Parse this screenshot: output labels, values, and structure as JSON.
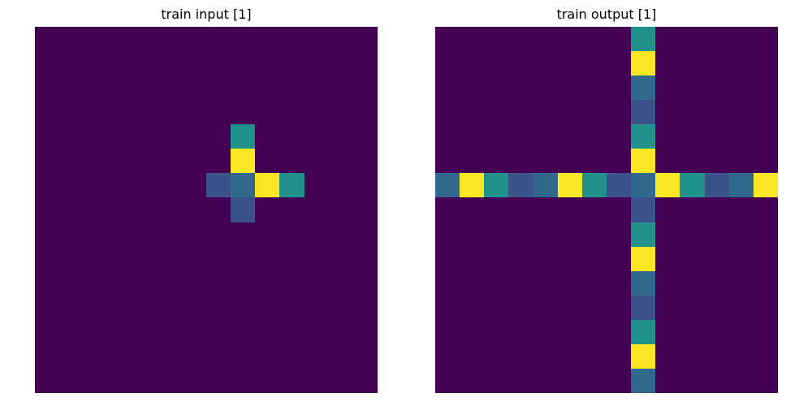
{
  "palette": {
    "0": "#440154",
    "1": "#3b528b",
    "2": "#21918c",
    "3": "#fde725",
    "4": "#31688e"
  },
  "panels": [
    {
      "title": "train input [1]",
      "rows": 15,
      "cols": 14,
      "grid": [
        [
          0,
          0,
          0,
          0,
          0,
          0,
          0,
          0,
          0,
          0,
          0,
          0,
          0,
          0
        ],
        [
          0,
          0,
          0,
          0,
          0,
          0,
          0,
          0,
          0,
          0,
          0,
          0,
          0,
          0
        ],
        [
          0,
          0,
          0,
          0,
          0,
          0,
          0,
          0,
          0,
          0,
          0,
          0,
          0,
          0
        ],
        [
          0,
          0,
          0,
          0,
          0,
          0,
          0,
          0,
          0,
          0,
          0,
          0,
          0,
          0
        ],
        [
          0,
          0,
          0,
          0,
          0,
          0,
          0,
          0,
          2,
          0,
          0,
          0,
          0,
          0
        ],
        [
          0,
          0,
          0,
          0,
          0,
          0,
          0,
          0,
          3,
          0,
          0,
          0,
          0,
          0
        ],
        [
          0,
          0,
          0,
          0,
          0,
          0,
          0,
          1,
          4,
          3,
          2,
          0,
          0,
          0
        ],
        [
          0,
          0,
          0,
          0,
          0,
          0,
          0,
          0,
          1,
          0,
          0,
          0,
          0,
          0
        ],
        [
          0,
          0,
          0,
          0,
          0,
          0,
          0,
          0,
          0,
          0,
          0,
          0,
          0,
          0
        ],
        [
          0,
          0,
          0,
          0,
          0,
          0,
          0,
          0,
          0,
          0,
          0,
          0,
          0,
          0
        ],
        [
          0,
          0,
          0,
          0,
          0,
          0,
          0,
          0,
          0,
          0,
          0,
          0,
          0,
          0
        ],
        [
          0,
          0,
          0,
          0,
          0,
          0,
          0,
          0,
          0,
          0,
          0,
          0,
          0,
          0
        ],
        [
          0,
          0,
          0,
          0,
          0,
          0,
          0,
          0,
          0,
          0,
          0,
          0,
          0,
          0
        ],
        [
          0,
          0,
          0,
          0,
          0,
          0,
          0,
          0,
          0,
          0,
          0,
          0,
          0,
          0
        ],
        [
          0,
          0,
          0,
          0,
          0,
          0,
          0,
          0,
          0,
          0,
          0,
          0,
          0,
          0
        ]
      ]
    },
    {
      "title": "train output [1]",
      "rows": 15,
      "cols": 14,
      "grid": [
        [
          0,
          0,
          0,
          0,
          0,
          0,
          0,
          0,
          2,
          0,
          0,
          0,
          0,
          0
        ],
        [
          0,
          0,
          0,
          0,
          0,
          0,
          0,
          0,
          3,
          0,
          0,
          0,
          0,
          0
        ],
        [
          0,
          0,
          0,
          0,
          0,
          0,
          0,
          0,
          4,
          0,
          0,
          0,
          0,
          0
        ],
        [
          0,
          0,
          0,
          0,
          0,
          0,
          0,
          0,
          1,
          0,
          0,
          0,
          0,
          0
        ],
        [
          0,
          0,
          0,
          0,
          0,
          0,
          0,
          0,
          2,
          0,
          0,
          0,
          0,
          0
        ],
        [
          0,
          0,
          0,
          0,
          0,
          0,
          0,
          0,
          3,
          0,
          0,
          0,
          0,
          0
        ],
        [
          4,
          3,
          2,
          1,
          4,
          3,
          2,
          1,
          4,
          3,
          2,
          1,
          4,
          3
        ],
        [
          0,
          0,
          0,
          0,
          0,
          0,
          0,
          0,
          1,
          0,
          0,
          0,
          0,
          0
        ],
        [
          0,
          0,
          0,
          0,
          0,
          0,
          0,
          0,
          2,
          0,
          0,
          0,
          0,
          0
        ],
        [
          0,
          0,
          0,
          0,
          0,
          0,
          0,
          0,
          3,
          0,
          0,
          0,
          0,
          0
        ],
        [
          0,
          0,
          0,
          0,
          0,
          0,
          0,
          0,
          4,
          0,
          0,
          0,
          0,
          0
        ],
        [
          0,
          0,
          0,
          0,
          0,
          0,
          0,
          0,
          1,
          0,
          0,
          0,
          0,
          0
        ],
        [
          0,
          0,
          0,
          0,
          0,
          0,
          0,
          0,
          2,
          0,
          0,
          0,
          0,
          0
        ],
        [
          0,
          0,
          0,
          0,
          0,
          0,
          0,
          0,
          3,
          0,
          0,
          0,
          0,
          0
        ],
        [
          0,
          0,
          0,
          0,
          0,
          0,
          0,
          0,
          4,
          0,
          0,
          0,
          0,
          0
        ]
      ]
    }
  ]
}
